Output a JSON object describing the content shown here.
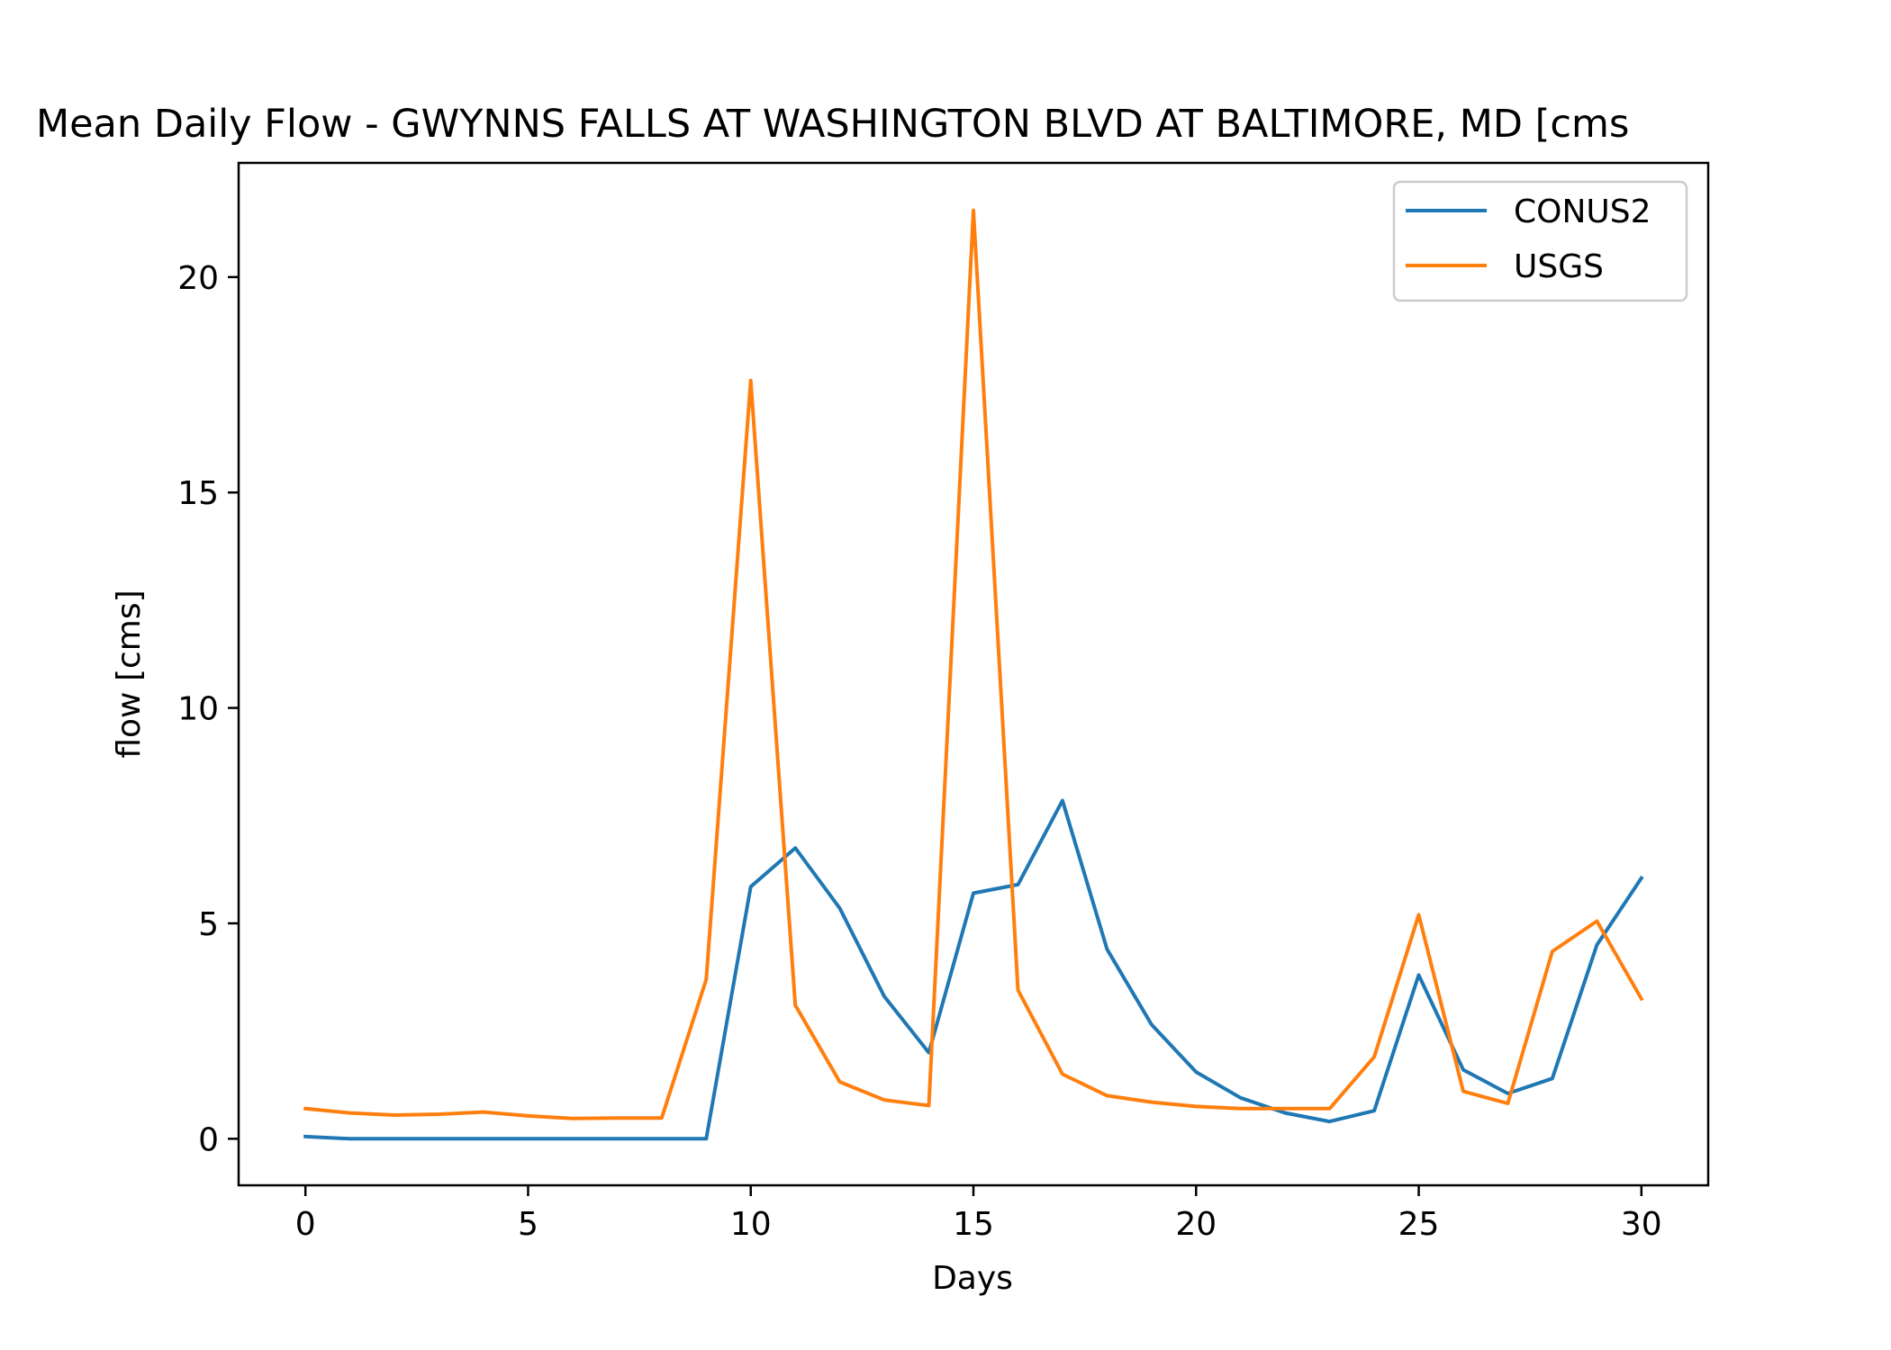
{
  "chart_data": {
    "type": "line",
    "title": "Mean Daily Flow - GWYNNS FALLS AT WASHINGTON BLVD AT BALTIMORE, MD [cms",
    "xlabel": "Days",
    "ylabel": "flow [cms]",
    "xlim": [
      -1.5,
      31.5
    ],
    "ylim": [
      -1.08,
      22.65
    ],
    "xticks": [
      0,
      5,
      10,
      15,
      20,
      25,
      30
    ],
    "yticks": [
      0,
      5,
      10,
      15,
      20
    ],
    "grid": false,
    "legend_position": "top-right",
    "x": [
      0,
      1,
      2,
      3,
      4,
      5,
      6,
      7,
      8,
      9,
      10,
      11,
      12,
      13,
      14,
      15,
      16,
      17,
      18,
      19,
      20,
      21,
      22,
      23,
      24,
      25,
      26,
      27,
      28,
      29,
      30
    ],
    "series": [
      {
        "name": "CONUS2",
        "color": "#1f77b4",
        "values": [
          0.05,
          0.0,
          0.0,
          0.0,
          0.0,
          0.0,
          0.0,
          0.0,
          0.0,
          0.0,
          5.85,
          6.75,
          5.35,
          3.3,
          2.0,
          5.7,
          5.9,
          7.85,
          4.4,
          2.65,
          1.55,
          0.95,
          0.6,
          0.4,
          0.65,
          3.8,
          1.6,
          1.05,
          1.4,
          4.5,
          6.05
        ]
      },
      {
        "name": "USGS",
        "color": "#ff7f0e",
        "values": [
          0.7,
          0.6,
          0.55,
          0.57,
          0.62,
          0.53,
          0.47,
          0.48,
          0.48,
          3.7,
          17.6,
          3.1,
          1.32,
          0.9,
          0.77,
          21.55,
          3.45,
          1.5,
          1.0,
          0.85,
          0.75,
          0.7,
          0.7,
          0.7,
          1.9,
          5.2,
          1.1,
          0.82,
          4.35,
          5.05,
          3.25
        ]
      }
    ]
  }
}
